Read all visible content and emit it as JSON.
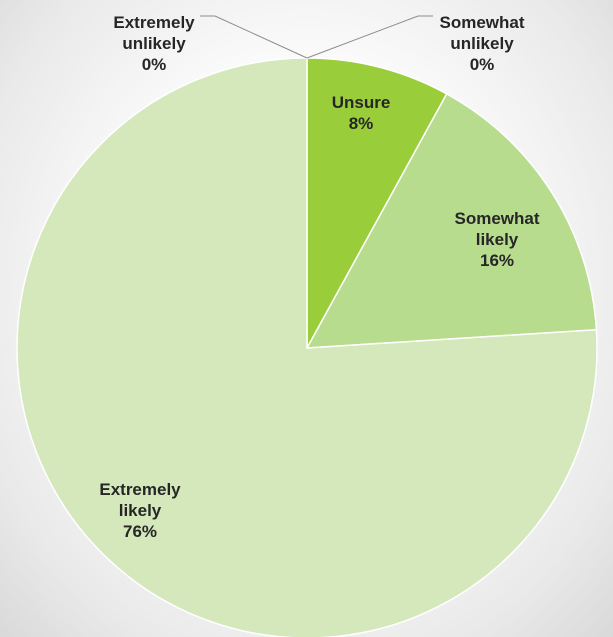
{
  "chart_data": {
    "type": "pie",
    "title": "",
    "slices": [
      {
        "label": "Unsure",
        "value": 8,
        "display": "8%",
        "color": "#9acd3a"
      },
      {
        "label": "Somewhat likely",
        "value": 16,
        "display": "16%",
        "color": "#b8dc8e"
      },
      {
        "label": "Extremely likely",
        "value": 76,
        "display": "76%",
        "color": "#d4e8bb"
      },
      {
        "label": "Extremely unlikely",
        "value": 0,
        "display": "0%",
        "color": "#6f9e2a"
      },
      {
        "label": "Somewhat unlikely",
        "value": 0,
        "display": "0%",
        "color": "#84b335"
      }
    ],
    "legend": "none",
    "start_angle": "12 o'clock",
    "direction": "clockwise"
  }
}
